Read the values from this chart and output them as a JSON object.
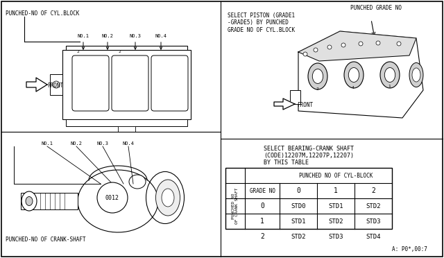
{
  "bg_color": "#ffffff",
  "border_color": "#000000",
  "table_title_line1": "SELECT BEARING-CRANK SHAFT",
  "table_title_line2": "(CODE)12207M,12207P,12207)",
  "table_title_line3": "BY THIS TABLE",
  "table_col_header": "PUNCHED NO OF CYL-BLOCK",
  "table_row_header": "PUNCHED NO\nOF CRANK SHAFT",
  "table_grade_label": "GRADE NO",
  "col_labels": [
    "0",
    "1",
    "2"
  ],
  "row_labels": [
    "0",
    "1",
    "2"
  ],
  "cells": [
    [
      "STD0",
      "STD1",
      "STD2"
    ],
    [
      "STD1",
      "STD2",
      "STD3"
    ],
    [
      "STD2",
      "STD3",
      "STD4"
    ]
  ],
  "footer": "A: P0*,00:7",
  "top_left_label": "PUNCHED-NO OF CYL.BLOCK",
  "top_right_label1": "SELECT PISTON (GRADE1\n-GRADE5) BY PUNCHED\nGRADE NO OF CYL.BLOCK",
  "top_right_label2": "PUNCHED GRADE NO",
  "bottom_left_crankshaft_label": "PUNCHED-NO OF CRANK-SHAFT",
  "bottom_left_inner": "0012"
}
